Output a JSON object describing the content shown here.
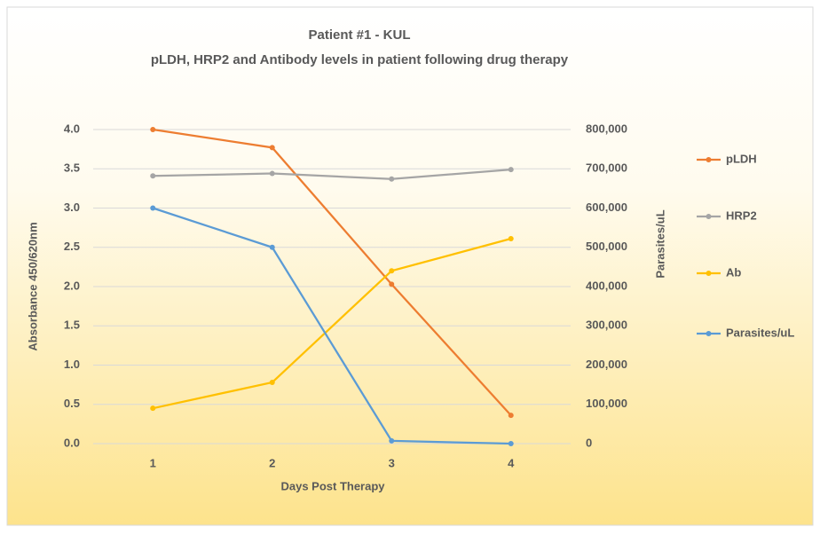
{
  "chart_data": {
    "type": "line",
    "title": "Patient #1 - KUL",
    "subtitle": "pLDH, HRP2 and Antibody levels in patient following drug therapy",
    "x_label": "Days Post Therapy",
    "y_label": "Absorbance 450/620nm",
    "y2_label": "Parasites/uL",
    "categories": [
      "1",
      "2",
      "3",
      "4"
    ],
    "series": [
      {
        "name": "pLDH",
        "color": "#ed7d31",
        "values": [
          4.0,
          3.77,
          2.03,
          0.36
        ]
      },
      {
        "name": "HRP2",
        "color": "#a5a5a5",
        "values": [
          3.41,
          3.44,
          3.37,
          3.49
        ]
      },
      {
        "name": "Ab",
        "color": "#ffc000",
        "values": [
          0.45,
          0.78,
          2.2,
          2.61
        ]
      },
      {
        "name": "Parasites/uL",
        "color": "#5b9bd5",
        "axis": "y2",
        "values": [
          600000,
          500000,
          7000,
          0
        ]
      }
    ],
    "ylim": [
      0,
      4
    ],
    "yticks": [
      {
        "value": 0,
        "label": "0.0"
      },
      0.5,
      {
        "value": 1,
        "label": "1.0"
      },
      1.5,
      {
        "value": 2,
        "label": "2.0"
      },
      2.5,
      {
        "value": 3,
        "label": "3.0"
      },
      3.5,
      {
        "value": 4,
        "label": "4.0"
      }
    ],
    "y2lim": [
      0,
      800000
    ],
    "y2ticks": [
      0,
      {
        "value": 100000,
        "label": "100,000"
      },
      {
        "value": 200000,
        "label": "200,000"
      },
      {
        "value": 300000,
        "label": "300,000"
      },
      {
        "value": 400000,
        "label": "400,000"
      },
      {
        "value": 500000,
        "label": "500,000"
      },
      {
        "value": 600000,
        "label": "600,000"
      },
      {
        "value": 700000,
        "label": "700,000"
      },
      {
        "value": 800000,
        "label": "800,000"
      }
    ],
    "grid": true,
    "legend": "right"
  }
}
